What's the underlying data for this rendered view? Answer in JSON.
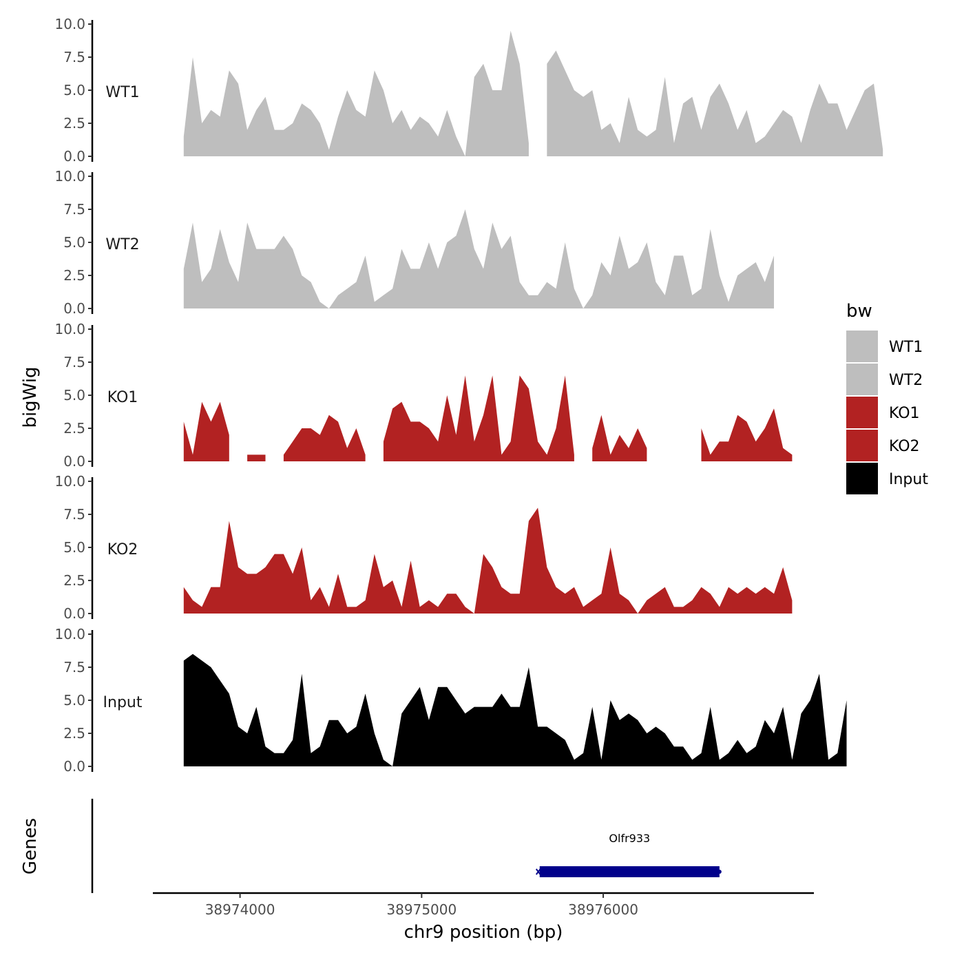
{
  "chart_data": {
    "type": "area",
    "y_axis_label": "bigWig",
    "genes_axis_label": "Genes",
    "x_axis_label": "chr9 position (bp)",
    "ylim": [
      0,
      10
    ],
    "y_ticks": [
      "0.0",
      "2.5",
      "5.0",
      "7.5",
      "10.0"
    ],
    "xlim": [
      38973520,
      38977160
    ],
    "x_ticks": [
      38974000,
      38975000,
      38976000
    ],
    "x_tick_labels": [
      "38974000",
      "38975000",
      "38976000"
    ],
    "legend": {
      "title": "bw",
      "position": "right",
      "items": [
        {
          "label": "WT1",
          "color": "#bebebe"
        },
        {
          "label": "WT2",
          "color": "#bebebe"
        },
        {
          "label": "KO1",
          "color": "#b22222"
        },
        {
          "label": "KO2",
          "color": "#b22222"
        },
        {
          "label": "Input",
          "color": "#000000"
        }
      ]
    },
    "x_start": 38973690,
    "x_step": 50,
    "series": [
      {
        "name": "WT1",
        "color": "#bebebe",
        "values": [
          1.5,
          7.5,
          2.5,
          3.5,
          3.0,
          6.5,
          5.5,
          2.0,
          3.5,
          4.5,
          2.0,
          2.0,
          2.5,
          4.0,
          3.5,
          2.5,
          0.5,
          3.0,
          5.0,
          3.5,
          3.0,
          6.5,
          5.0,
          2.5,
          3.5,
          2.0,
          3.0,
          2.5,
          1.5,
          3.5,
          1.5,
          0.0,
          6.0,
          7.0,
          5.0,
          5.0,
          9.5,
          7.0,
          1.0,
          null,
          7.0,
          8.0,
          6.5,
          5.0,
          4.5,
          5.0,
          2.0,
          2.5,
          1.0,
          4.5,
          2.0,
          1.5,
          2.0,
          6.0,
          1.0,
          4.0,
          4.5,
          2.0,
          4.5,
          5.5,
          4.0,
          2.0,
          3.5,
          1.0,
          1.5,
          2.5,
          3.5,
          3.0,
          1.0,
          3.5,
          5.5,
          4.0,
          4.0,
          2.0,
          3.5,
          5.0,
          5.5,
          0.5
        ]
      },
      {
        "name": "WT2",
        "color": "#bebebe",
        "values": [
          3.0,
          6.5,
          2.0,
          3.0,
          6.0,
          3.5,
          2.0,
          6.5,
          4.5,
          4.5,
          4.5,
          5.5,
          4.5,
          2.5,
          2.0,
          0.5,
          0.0,
          1.0,
          1.5,
          2.0,
          4.0,
          0.5,
          1.0,
          1.5,
          4.5,
          3.0,
          3.0,
          5.0,
          3.0,
          5.0,
          5.5,
          7.5,
          4.5,
          3.0,
          6.5,
          4.5,
          5.5,
          2.0,
          1.0,
          1.0,
          2.0,
          1.5,
          5.0,
          1.5,
          0.0,
          1.0,
          3.5,
          2.5,
          5.5,
          3.0,
          3.5,
          5.0,
          2.0,
          1.0,
          4.0,
          4.0,
          1.0,
          1.5,
          6.0,
          2.5,
          0.5,
          2.5,
          3.0,
          3.5,
          2.0,
          4.0
        ]
      },
      {
        "name": "KO1",
        "color": "#b22222",
        "values": [
          3.0,
          0.5,
          4.5,
          3.0,
          4.5,
          2.0,
          null,
          0.5,
          0.5,
          0.5,
          null,
          0.5,
          1.5,
          2.5,
          2.5,
          2.0,
          3.5,
          3.0,
          1.0,
          2.5,
          0.5,
          null,
          1.5,
          4.0,
          4.5,
          3.0,
          3.0,
          2.5,
          1.5,
          5.0,
          2.0,
          6.5,
          1.5,
          3.5,
          6.5,
          0.5,
          1.5,
          6.5,
          5.5,
          1.5,
          0.5,
          2.5,
          6.5,
          0.5,
          null,
          1.0,
          3.5,
          0.5,
          2.0,
          1.0,
          2.5,
          1.0,
          null,
          null,
          null,
          null,
          null,
          2.5,
          0.5,
          1.5,
          1.5,
          3.5,
          3.0,
          1.5,
          2.5,
          4.0,
          1.0,
          0.5
        ]
      },
      {
        "name": "KO2",
        "color": "#b22222",
        "values": [
          2.0,
          1.0,
          0.5,
          2.0,
          2.0,
          7.0,
          3.5,
          3.0,
          3.0,
          3.5,
          4.5,
          4.5,
          3.0,
          5.0,
          1.0,
          2.0,
          0.5,
          3.0,
          0.5,
          0.5,
          1.0,
          4.5,
          2.0,
          2.5,
          0.5,
          4.0,
          0.5,
          1.0,
          0.5,
          1.5,
          1.5,
          0.5,
          0.0,
          4.5,
          3.5,
          2.0,
          1.5,
          1.5,
          7.0,
          8.0,
          3.5,
          2.0,
          1.5,
          2.0,
          0.5,
          1.0,
          1.5,
          5.0,
          1.5,
          1.0,
          0.0,
          1.0,
          1.5,
          2.0,
          0.5,
          0.5,
          1.0,
          2.0,
          1.5,
          0.5,
          2.0,
          1.5,
          2.0,
          1.5,
          2.0,
          1.5,
          3.5,
          1.0
        ]
      },
      {
        "name": "Input",
        "color": "#000000",
        "values": [
          8.0,
          8.5,
          8.0,
          7.5,
          6.5,
          5.5,
          3.0,
          2.5,
          4.5,
          1.5,
          1.0,
          1.0,
          2.0,
          7.0,
          1.0,
          1.5,
          3.5,
          3.5,
          2.5,
          3.0,
          5.5,
          2.5,
          0.5,
          0.0,
          4.0,
          5.0,
          6.0,
          3.5,
          6.0,
          6.0,
          5.0,
          4.0,
          4.5,
          4.5,
          4.5,
          5.5,
          4.5,
          4.5,
          7.5,
          3.0,
          3.0,
          2.5,
          2.0,
          0.5,
          1.0,
          4.5,
          0.5,
          5.0,
          3.5,
          4.0,
          3.5,
          2.5,
          3.0,
          2.5,
          1.5,
          1.5,
          0.5,
          1.0,
          4.5,
          0.5,
          1.0,
          2.0,
          1.0,
          1.5,
          3.5,
          2.5,
          4.5,
          0.5,
          4.0,
          5.0,
          7.0,
          0.5,
          1.0,
          5.0
        ]
      }
    ],
    "genes": [
      {
        "name": "Olfr933",
        "start": 38975650,
        "end": 38976640,
        "color": "#00008b"
      }
    ]
  }
}
